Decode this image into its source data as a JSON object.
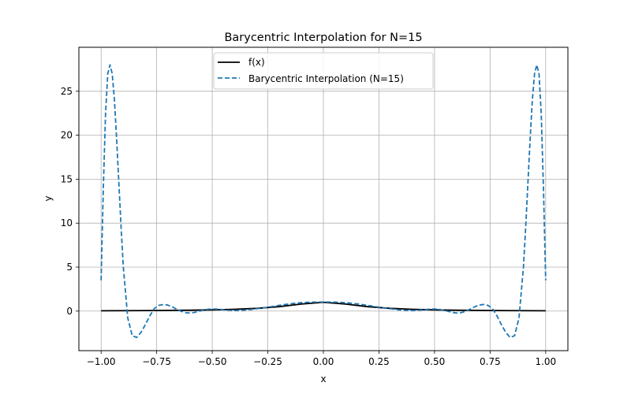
{
  "chart_data": {
    "type": "line",
    "title": "Barycentric Interpolation for N=15",
    "xlabel": "x",
    "ylabel": "y",
    "xlim": [
      -1.1,
      1.1
    ],
    "ylim": [
      -4.5,
      30.0
    ],
    "xticks": [
      -1.0,
      -0.75,
      -0.5,
      -0.25,
      0.0,
      0.25,
      0.5,
      0.75,
      1.0
    ],
    "xtick_labels": [
      "−1.00",
      "−0.75",
      "−0.50",
      "−0.25",
      "0.00",
      "0.25",
      "0.50",
      "0.75",
      "1.00"
    ],
    "yticks": [
      0,
      5,
      10,
      15,
      20,
      25
    ],
    "ytick_labels": [
      "0",
      "5",
      "10",
      "15",
      "20",
      "25"
    ],
    "grid": true,
    "legend_position": "top-center",
    "series": [
      {
        "name": "f(x)",
        "style": "solid",
        "color": "#000000",
        "x": [
          -1.0,
          -0.9,
          -0.8,
          -0.7,
          -0.6,
          -0.5,
          -0.4,
          -0.3,
          -0.2,
          -0.1,
          0.0,
          0.1,
          0.2,
          0.3,
          0.4,
          0.5,
          0.6,
          0.7,
          0.8,
          0.9,
          1.0
        ],
        "y": [
          0.04,
          0.05,
          0.06,
          0.08,
          0.1,
          0.14,
          0.2,
          0.31,
          0.5,
          0.8,
          1.0,
          0.8,
          0.5,
          0.31,
          0.2,
          0.14,
          0.1,
          0.08,
          0.06,
          0.05,
          0.04
        ]
      },
      {
        "name": "Barycentric Interpolation (N=15)",
        "style": "dashed",
        "color": "#1f77b4",
        "x": [
          -1.0,
          -0.99,
          -0.98,
          -0.97,
          -0.96,
          -0.95,
          -0.94,
          -0.93,
          -0.92,
          -0.91,
          -0.9,
          -0.88,
          -0.86,
          -0.84,
          -0.82,
          -0.8,
          -0.78,
          -0.76,
          -0.74,
          -0.72,
          -0.7,
          -0.68,
          -0.66,
          -0.64,
          -0.62,
          -0.6,
          -0.58,
          -0.56,
          -0.54,
          -0.52,
          -0.5,
          -0.48,
          -0.46,
          -0.44,
          -0.42,
          -0.4,
          -0.38,
          -0.36,
          -0.34,
          -0.32,
          -0.3,
          -0.28,
          -0.26,
          -0.24,
          -0.22,
          -0.2,
          -0.15,
          -0.1,
          -0.05,
          0.0,
          0.05,
          0.1,
          0.15,
          0.2,
          0.22,
          0.24,
          0.26,
          0.28,
          0.3,
          0.32,
          0.34,
          0.36,
          0.38,
          0.4,
          0.42,
          0.44,
          0.46,
          0.48,
          0.5,
          0.52,
          0.54,
          0.56,
          0.58,
          0.6,
          0.62,
          0.64,
          0.66,
          0.68,
          0.7,
          0.72,
          0.74,
          0.76,
          0.78,
          0.8,
          0.82,
          0.84,
          0.86,
          0.88,
          0.9,
          0.91,
          0.92,
          0.93,
          0.94,
          0.95,
          0.96,
          0.97,
          0.98,
          0.99,
          1.0
        ],
        "y": [
          3.5,
          14.0,
          22.5,
          27.0,
          28.0,
          27.0,
          24.0,
          19.5,
          14.5,
          9.5,
          5.0,
          -0.8,
          -2.8,
          -3.0,
          -2.4,
          -1.5,
          -0.5,
          0.3,
          0.65,
          0.75,
          0.68,
          0.48,
          0.22,
          -0.02,
          -0.18,
          -0.22,
          -0.15,
          -0.02,
          0.1,
          0.2,
          0.24,
          0.22,
          0.18,
          0.12,
          0.08,
          0.06,
          0.07,
          0.1,
          0.14,
          0.2,
          0.27,
          0.33,
          0.4,
          0.48,
          0.56,
          0.65,
          0.83,
          0.96,
          1.02,
          1.03,
          1.02,
          0.96,
          0.83,
          0.65,
          0.56,
          0.48,
          0.4,
          0.33,
          0.27,
          0.2,
          0.14,
          0.1,
          0.07,
          0.06,
          0.08,
          0.12,
          0.18,
          0.22,
          0.24,
          0.2,
          0.1,
          -0.02,
          -0.15,
          -0.22,
          -0.18,
          -0.02,
          0.22,
          0.48,
          0.68,
          0.75,
          0.65,
          0.3,
          -0.5,
          -1.5,
          -2.4,
          -3.0,
          -2.8,
          -0.8,
          5.0,
          9.5,
          14.5,
          19.5,
          24.0,
          27.0,
          28.0,
          27.0,
          22.5,
          14.0,
          3.5
        ]
      }
    ]
  }
}
